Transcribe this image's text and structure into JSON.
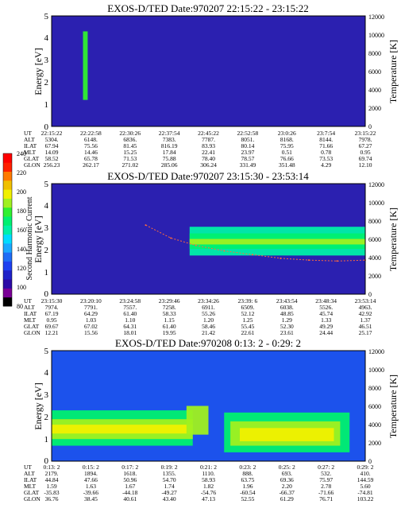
{
  "colorbar": {
    "label": "Second Harmonic Current",
    "ticks": [
      "80",
      "100",
      "120",
      "140",
      "160",
      "180",
      "200",
      "220",
      "240"
    ],
    "colors": [
      "#000000",
      "#7a0096",
      "#2b0aa6",
      "#1f22c8",
      "#1e40f0",
      "#1e6cf5",
      "#1aa8ff",
      "#00dcff",
      "#00f0a8",
      "#00f070",
      "#30f030",
      "#a0f020",
      "#f0f000",
      "#f0c000",
      "#ff7a00",
      "#ff2000",
      "#ff0000"
    ]
  },
  "panels": [
    {
      "title": "EXOS-D/TED   Date:970207   22:15:22 - 23:15:22",
      "ylabel": "Energy [eV]",
      "y2label": "Temperature [K]",
      "y_ticks": [
        "0",
        "1",
        "2",
        "3",
        "4",
        "5"
      ],
      "y2_ticks": [
        "0",
        "2000",
        "4000",
        "6000",
        "8000",
        "10000",
        "12000"
      ],
      "orbit_rows": [
        {
          "label": "UT",
          "values": [
            "22:15:22",
            "22:22:58",
            "22:30:26",
            "22:37:54",
            "22:45:22",
            "22:52:58",
            "23:0:26",
            "23:7:54",
            "23:15:22"
          ]
        },
        {
          "label": "ALT",
          "values": [
            "5304.",
            "6148.",
            "6836.",
            "7383.",
            "7787.",
            "8051.",
            "8168.",
            "8144.",
            "7978."
          ]
        },
        {
          "label": "ILAT",
          "values": [
            "67.94",
            "75.56",
            "81.45",
            "816.19",
            "83.93",
            "80.14",
            "75.95",
            "71.66",
            "67.27"
          ]
        },
        {
          "label": "MLT",
          "values": [
            "14.09",
            "14.46",
            "15.25",
            "17.84",
            "22.41",
            "23.97",
            "0.51",
            "0.78",
            "0.95"
          ]
        },
        {
          "label": "GLAT",
          "values": [
            "58.52",
            "65.78",
            "71.53",
            "75.88",
            "78.40",
            "78.57",
            "76.66",
            "73.53",
            "69.74"
          ]
        },
        {
          "label": "GLON",
          "values": [
            "256.23",
            "262.17",
            "271.02",
            "285.06",
            "306.24",
            "331.49",
            "351.48",
            "4.29",
            "12.10"
          ]
        }
      ]
    },
    {
      "title": "EXOS-D/TED   Date:970207   23:15:30 - 23:53:14",
      "ylabel": "Energy [eV]",
      "y2label": "Temperature [K]",
      "y_ticks": [
        "0",
        "1",
        "2",
        "3",
        "4",
        "5"
      ],
      "y2_ticks": [
        "0",
        "2000",
        "4000",
        "6000",
        "8000",
        "10000",
        "12000"
      ],
      "orbit_rows": [
        {
          "label": "UT",
          "values": [
            "23:15:30",
            "23:20:10",
            "23:24:58",
            "23:29:46",
            "23:34:26",
            "23:39: 6",
            "23:43:54",
            "23:48:34",
            "23:53:14"
          ]
        },
        {
          "label": "ALT",
          "values": [
            "7974.",
            "7791.",
            "7557.",
            "7258.",
            "6911.",
            "6509.",
            "6038.",
            "5526.",
            "4963."
          ]
        },
        {
          "label": "ILAT",
          "values": [
            "67.19",
            "64.29",
            "61.40",
            "58.33",
            "55.26",
            "52.12",
            "48.85",
            "45.74",
            "42.92"
          ]
        },
        {
          "label": "MLT",
          "values": [
            "0.95",
            "1.03",
            "1.10",
            "1.15",
            "1.20",
            "1.25",
            "1.29",
            "1.33",
            "1.37"
          ]
        },
        {
          "label": "GLAT",
          "values": [
            "69.67",
            "67.02",
            "64.31",
            "61.40",
            "58.46",
            "55.45",
            "52.30",
            "49.29",
            "46.51"
          ]
        },
        {
          "label": "GLON",
          "values": [
            "12.21",
            "15.56",
            "18.01",
            "19.95",
            "21.42",
            "22.61",
            "23.61",
            "24.44",
            "25.17"
          ]
        }
      ]
    },
    {
      "title": "EXOS-D/TED   Date:970208   0:13: 2 - 0:29: 2",
      "ylabel": "Energy [eV]",
      "y2label": "Temperature [K]",
      "y_ticks": [
        "0",
        "1",
        "2",
        "3",
        "4",
        "5"
      ],
      "y2_ticks": [
        "0",
        "2000",
        "4000",
        "6000",
        "8000",
        "10000",
        "12000"
      ],
      "orbit_rows": [
        {
          "label": "UT",
          "values": [
            "0:13: 2",
            "0:15: 2",
            "0:17: 2",
            "0:19: 2",
            "0:21: 2",
            "0:23: 2",
            "0:25: 2",
            "0:27: 2",
            "0:29: 2"
          ]
        },
        {
          "label": "ALT",
          "values": [
            "2179.",
            "1894.",
            "1618.",
            "1355.",
            "1110.",
            "888.",
            "693.",
            "532.",
            "410."
          ]
        },
        {
          "label": "ILAT",
          "values": [
            "44.84",
            "47.66",
            "50.96",
            "54.70",
            "58.93",
            "63.75",
            "69.36",
            "75.97",
            "144.59"
          ]
        },
        {
          "label": "MLT",
          "values": [
            "1.59",
            "1.63",
            "1.67",
            "1.74",
            "1.82",
            "1.96",
            "2.20",
            "2.78",
            "5.60"
          ]
        },
        {
          "label": "GLAT",
          "values": [
            "-35.83",
            "-39.66",
            "-44.18",
            "-49.27",
            "-54.76",
            "-60.54",
            "-66.37",
            "-71.66",
            "-74.81"
          ]
        },
        {
          "label": "GLON",
          "values": [
            "36.76",
            "38.45",
            "40.61",
            "43.40",
            "47.13",
            "52.55",
            "61.29",
            "76.71",
            "103.22"
          ]
        }
      ]
    }
  ],
  "chart_data": [
    {
      "type": "heatmap",
      "title": "EXOS-D/TED   Date:970207   22:15:22 - 23:15:22",
      "ylabel": "Energy [eV]",
      "y2label": "Temperature [K]",
      "ylim": [
        0,
        5
      ],
      "y2lim": [
        0,
        12000
      ],
      "x_ticks": [
        "22:15:22",
        "22:22:58",
        "22:30:26",
        "22:37:54",
        "22:45:22",
        "22:52:58",
        "23:0:26",
        "23:7:54",
        "23:15:22"
      ],
      "background_level": 135,
      "bands": [
        {
          "x_start": 0.1,
          "x_end": 0.115,
          "y_low": 1.2,
          "y_high": 4.3,
          "level": 175
        }
      ]
    },
    {
      "type": "heatmap",
      "title": "EXOS-D/TED   Date:970207   23:15:30 - 23:53:14",
      "ylabel": "Energy [eV]",
      "y2label": "Temperature [K]",
      "ylim": [
        0,
        5
      ],
      "y2lim": [
        0,
        12000
      ],
      "x_ticks": [
        "23:15:30",
        "23:20:10",
        "23:24:58",
        "23:29:46",
        "23:34:26",
        "23:39: 6",
        "23:43:54",
        "23:48:34",
        "23:53:14"
      ],
      "background_level": 135,
      "bands": [
        {
          "x_start": 0.44,
          "x_end": 1.0,
          "y_low": 1.75,
          "y_high": 3.05,
          "level": 155
        },
        {
          "x_start": 0.44,
          "x_end": 1.0,
          "y_low": 2.05,
          "y_high": 2.75,
          "level": 170
        },
        {
          "x_start": 0.44,
          "x_end": 1.0,
          "y_low": 2.25,
          "y_high": 2.5,
          "level": 185
        }
      ],
      "temperature_points": [
        {
          "x": 0.3,
          "y": 7500
        },
        {
          "x": 0.38,
          "y": 6100
        },
        {
          "x": 0.46,
          "y": 5300
        },
        {
          "x": 0.55,
          "y": 4700
        },
        {
          "x": 0.64,
          "y": 4300
        },
        {
          "x": 0.73,
          "y": 3900
        },
        {
          "x": 0.82,
          "y": 3700
        },
        {
          "x": 0.91,
          "y": 3600
        },
        {
          "x": 1.0,
          "y": 3700
        }
      ]
    },
    {
      "type": "heatmap",
      "title": "EXOS-D/TED   Date:970208   0:13: 2 - 0:29: 2",
      "ylabel": "Energy [eV]",
      "y2label": "Temperature [K]",
      "ylim": [
        0,
        5
      ],
      "y2lim": [
        0,
        12000
      ],
      "x_ticks": [
        "0:13: 2",
        "0:15: 2",
        "0:17: 2",
        "0:19: 2",
        "0:21: 2",
        "0:23: 2",
        "0:25: 2",
        "0:27: 2",
        "0:29: 2"
      ],
      "background_level": 150,
      "bands": [
        {
          "x_start": 0.0,
          "x_end": 0.45,
          "y_low": 0.7,
          "y_high": 2.3,
          "level": 170
        },
        {
          "x_start": 0.0,
          "x_end": 0.45,
          "y_low": 1.0,
          "y_high": 1.9,
          "level": 185
        },
        {
          "x_start": 0.0,
          "x_end": 0.45,
          "y_low": 1.25,
          "y_high": 1.65,
          "level": 200
        },
        {
          "x_start": 0.43,
          "x_end": 0.5,
          "y_low": 1.2,
          "y_high": 2.5,
          "level": 185
        },
        {
          "x_start": 0.55,
          "x_end": 0.95,
          "y_low": 0.4,
          "y_high": 2.2,
          "level": 170
        },
        {
          "x_start": 0.57,
          "x_end": 0.92,
          "y_low": 0.7,
          "y_high": 1.8,
          "level": 185
        },
        {
          "x_start": 0.6,
          "x_end": 0.9,
          "y_low": 0.9,
          "y_high": 1.5,
          "level": 200
        }
      ]
    }
  ]
}
